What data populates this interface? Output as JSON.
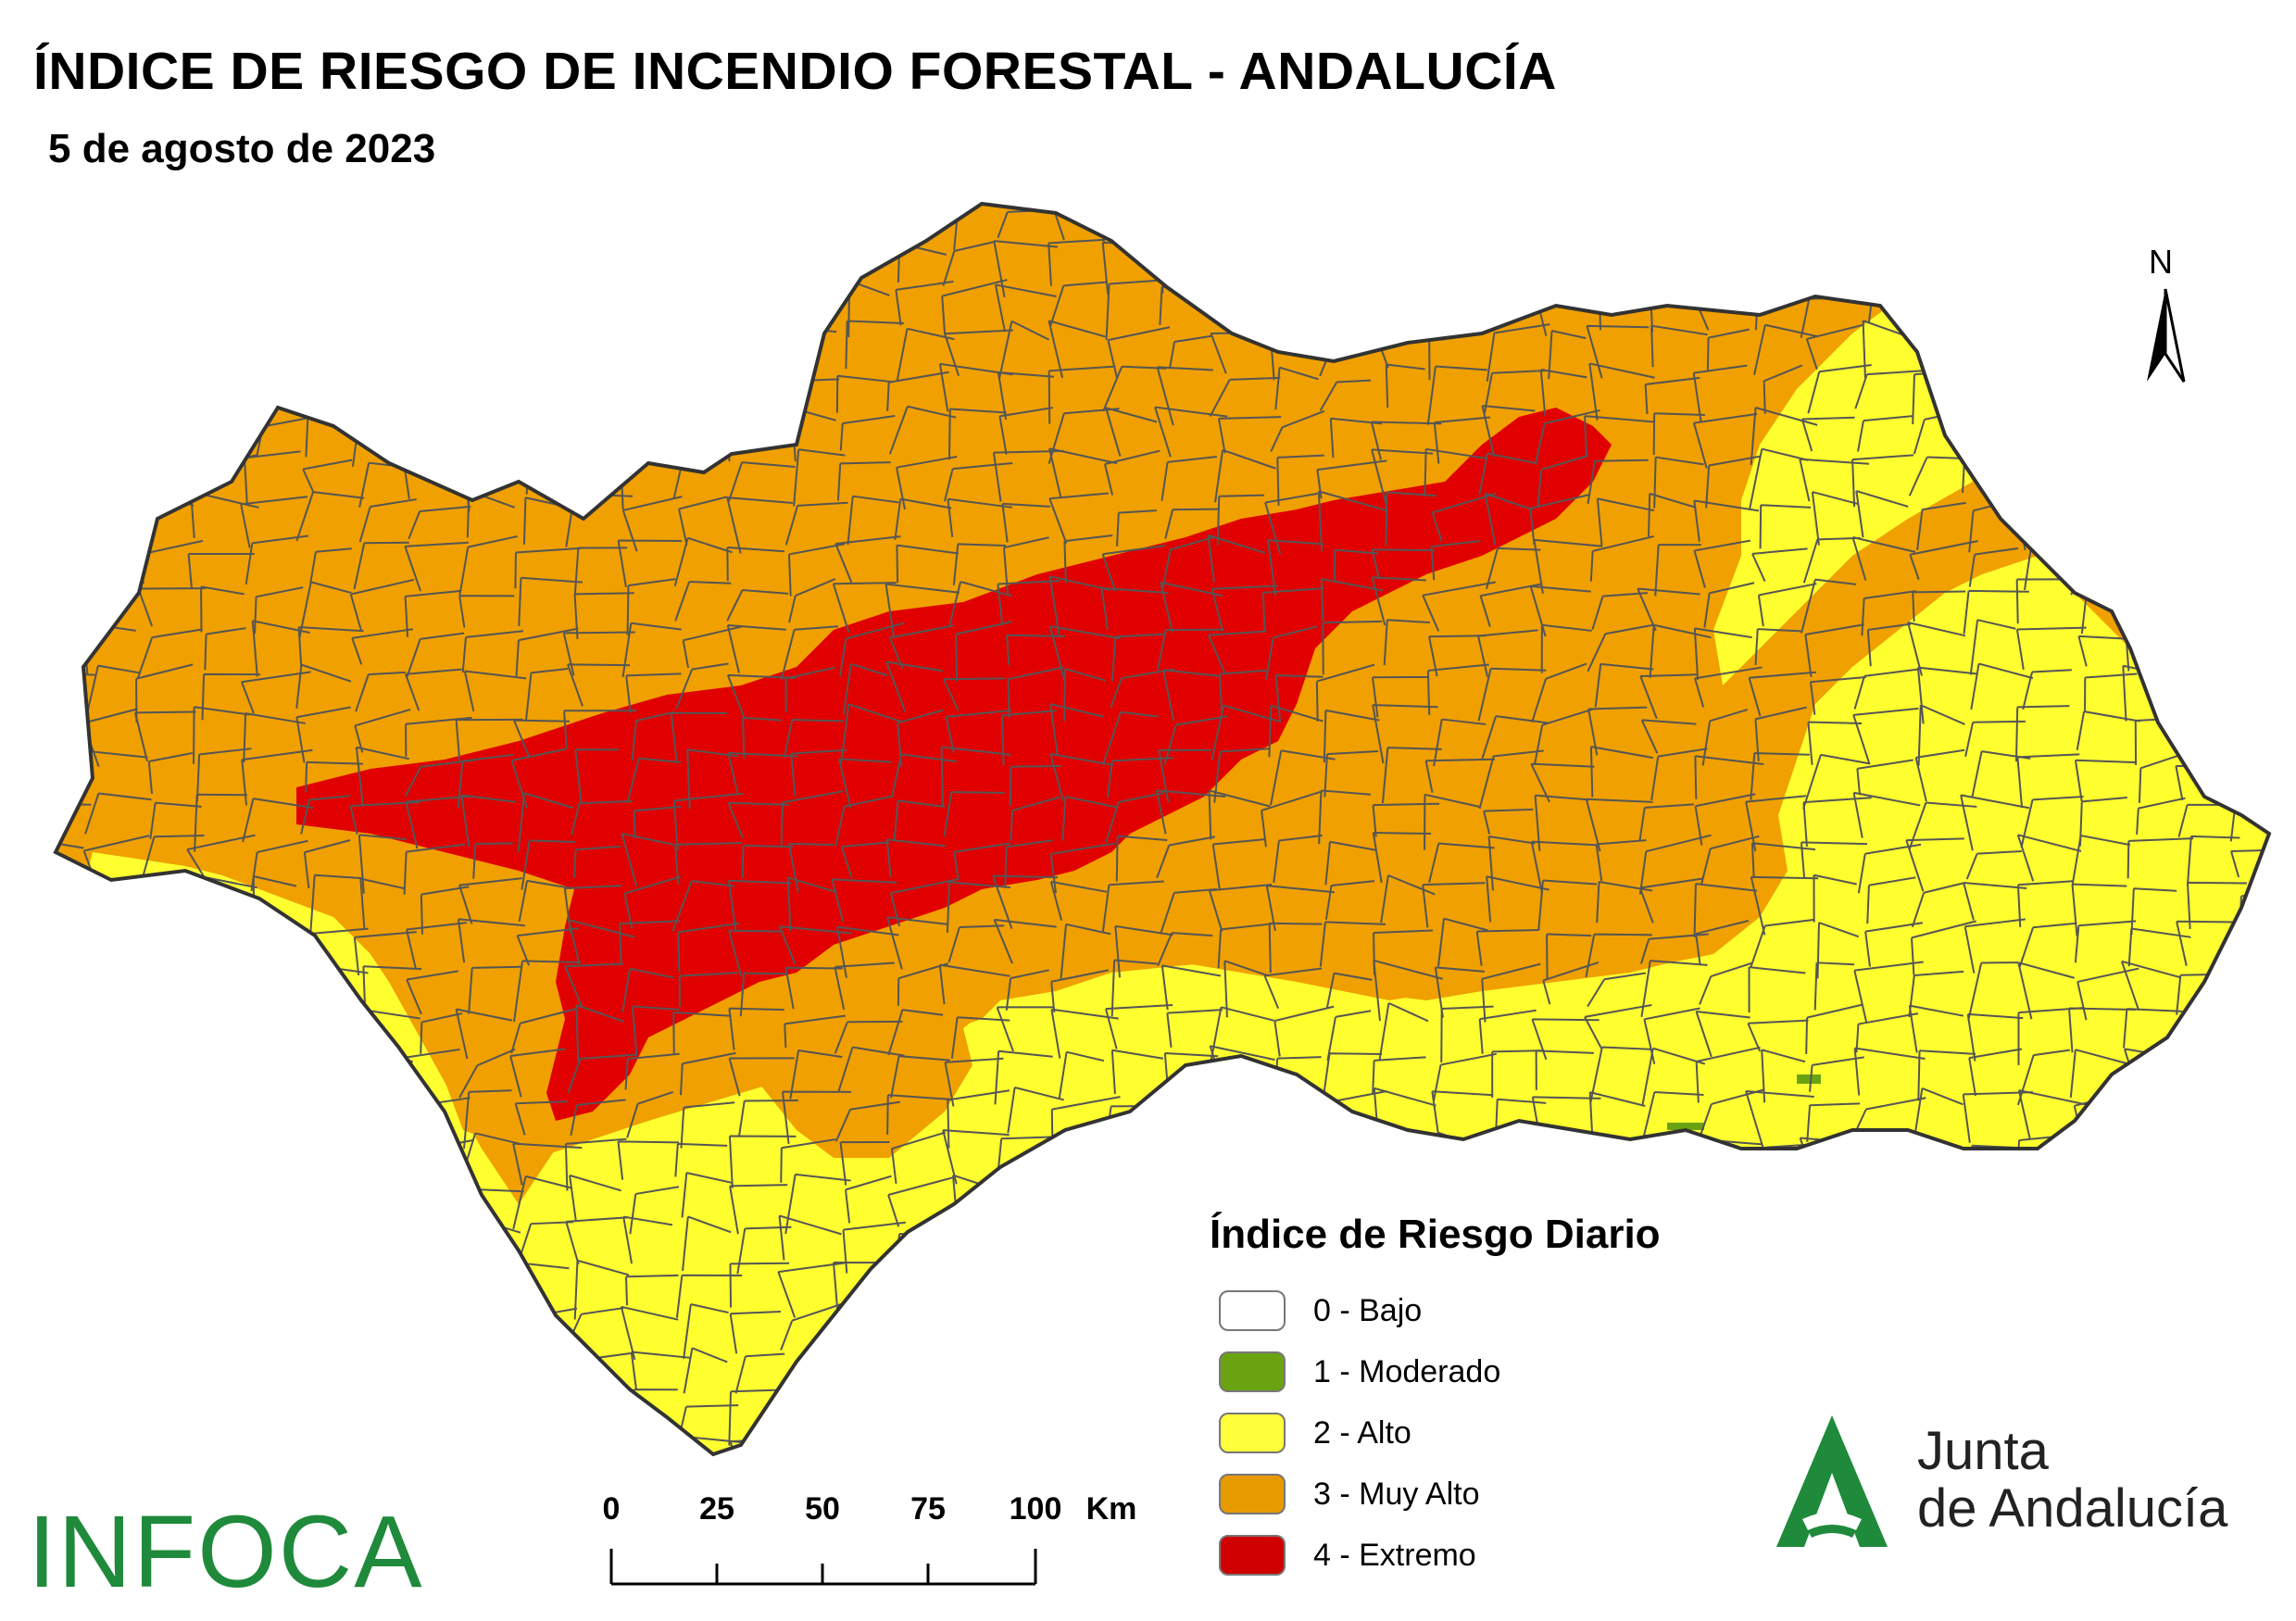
{
  "header": {
    "title": "ÍNDICE DE RIESGO DE INCENDIO FORESTAL - ANDALUCÍA",
    "date": "5 de agosto de 2023"
  },
  "north_arrow": {
    "label": "N"
  },
  "legend": {
    "title": "Índice de Riesgo Diario",
    "items": [
      {
        "label": "0 - Bajo",
        "color": "#ffffff"
      },
      {
        "label": "1 - Moderado",
        "color": "#6aa312"
      },
      {
        "label": "2 - Alto",
        "color": "#ffff3c"
      },
      {
        "label": "3 - Muy Alto",
        "color": "#e79a00"
      },
      {
        "label": "4 - Extremo",
        "color": "#d10000"
      }
    ]
  },
  "scale": {
    "ticks": [
      "0",
      "25",
      "50",
      "75",
      "100"
    ],
    "unit": "Km"
  },
  "logos": {
    "infoca": "INFOCA",
    "junta_line1": "Junta",
    "junta_line2": "de Andalucía"
  },
  "map_colors": {
    "extremo": "#e10000",
    "muy_alto": "#f0a000",
    "alto": "#ffff30",
    "moderado": "#6aa312",
    "border": "#555555"
  }
}
